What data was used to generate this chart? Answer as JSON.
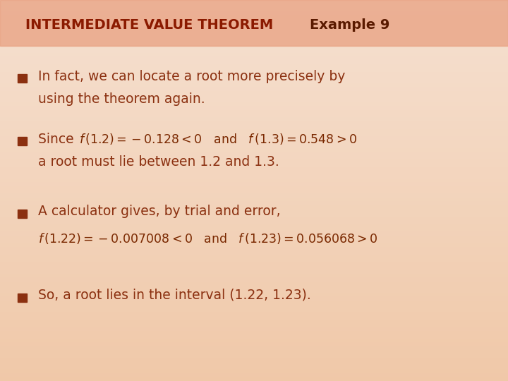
{
  "bg_color_top": "#f5e0d0",
  "bg_color_bottom": "#f0c8a8",
  "header_bg": "#e8a080",
  "header_text_ivt": "INTERMEDIATE VALUE THEOREM",
  "header_text_ex": "Example 9",
  "header_color_ivt": "#8b1a00",
  "header_color_ex": "#5a1a00",
  "bullet_color": "#8b3010",
  "text_color": "#8b3010",
  "math_color": "#7a2800",
  "bullet1_line1": "In fact, we can locate a root more precisely by",
  "bullet1_line2": "using the theorem again.",
  "bullet2_intro": "Since ",
  "bullet2_math1": "f (1.2) = –0.128 < 0",
  "bullet2_and": "  and  ",
  "bullet2_math2": "f (1.3) = 0.548 > 0",
  "bullet2_line2": "a root must lie between 1.2 and 1.3.",
  "bullet3_line1": "A calculator gives, by trial and error,",
  "bullet3_math": "f (1.22) = –0.007008 < 0  and   f (1.23) = 0.056068 > 0",
  "bullet4_line1": "So, a root lies in the interval (1.22, 1.23).",
  "figsize": [
    7.2,
    5.4
  ],
  "dpi": 100
}
